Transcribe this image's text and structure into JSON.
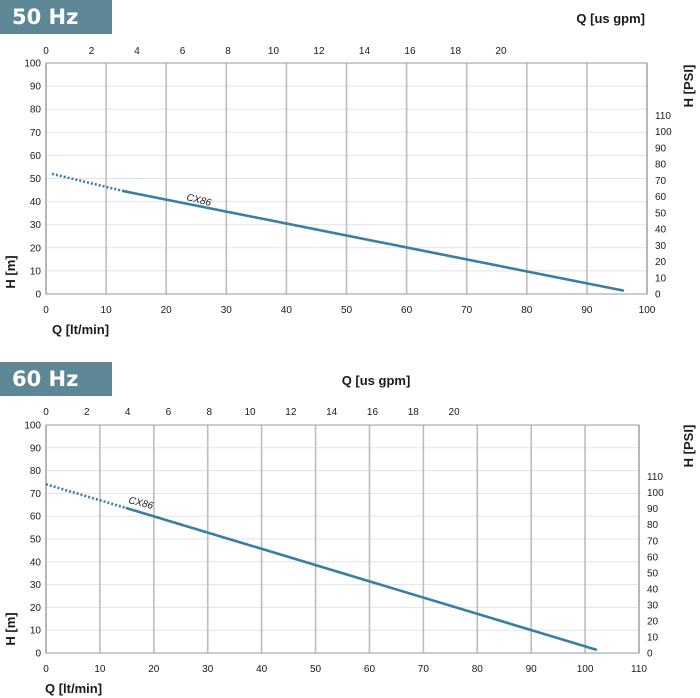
{
  "colors": {
    "badge": "#5e8795",
    "curve": "#3a7ea3",
    "grid_major": "#bdbdbd",
    "grid_minor": "#e3e3e3"
  },
  "chart_data": [
    {
      "type": "line",
      "badge": "50 Hz",
      "xlabel": "Q [lt/min]",
      "ylabel": "H [m]",
      "x2label": "Q [us gpm]",
      "y2label": "H [PSI]",
      "xlim": [
        0,
        100
      ],
      "ylim": [
        0,
        100
      ],
      "x2lim": [
        0,
        26.42
      ],
      "y2lim": [
        0,
        142.2
      ],
      "xticks": [
        0,
        10,
        20,
        30,
        40,
        50,
        60,
        70,
        80,
        90,
        100
      ],
      "yticks": [
        0,
        10,
        20,
        30,
        40,
        50,
        60,
        70,
        80,
        90,
        100
      ],
      "x2ticks": [
        0,
        2,
        4,
        6,
        8,
        10,
        12,
        14,
        16,
        18,
        20
      ],
      "y2ticks": [
        0,
        10,
        20,
        30,
        40,
        50,
        60,
        70,
        80,
        90,
        100,
        110
      ],
      "grid": true,
      "series": [
        {
          "name": "CX86",
          "dashed": {
            "x": [
              1,
              13
            ],
            "y": [
              52,
              44.5
            ]
          },
          "solid": {
            "x": [
              13,
              96
            ],
            "y": [
              44.5,
              1.5
            ]
          }
        }
      ]
    },
    {
      "type": "line",
      "badge": "60 Hz",
      "xlabel": "Q [lt/min]",
      "ylabel": "H [m]",
      "x2label": "Q [us gpm]",
      "y2label": "H [PSI]",
      "xlim": [
        0,
        110
      ],
      "ylim": [
        0,
        100
      ],
      "x2lim": [
        0,
        29.06
      ],
      "y2lim": [
        0,
        142.2
      ],
      "xticks": [
        0,
        10,
        20,
        30,
        40,
        50,
        60,
        70,
        80,
        90,
        100,
        110
      ],
      "yticks": [
        0,
        10,
        20,
        30,
        40,
        50,
        60,
        70,
        80,
        90,
        100
      ],
      "x2ticks": [
        0,
        2,
        4,
        6,
        8,
        10,
        12,
        14,
        16,
        18,
        20
      ],
      "y2ticks": [
        0,
        10,
        20,
        30,
        40,
        50,
        60,
        70,
        80,
        90,
        100,
        110
      ],
      "grid": true,
      "series": [
        {
          "name": "CX86",
          "dashed": {
            "x": [
              0,
              15
            ],
            "y": [
              74,
              63.5
            ]
          },
          "solid": {
            "x": [
              15,
              102
            ],
            "y": [
              63.5,
              1.5
            ]
          }
        }
      ]
    }
  ]
}
